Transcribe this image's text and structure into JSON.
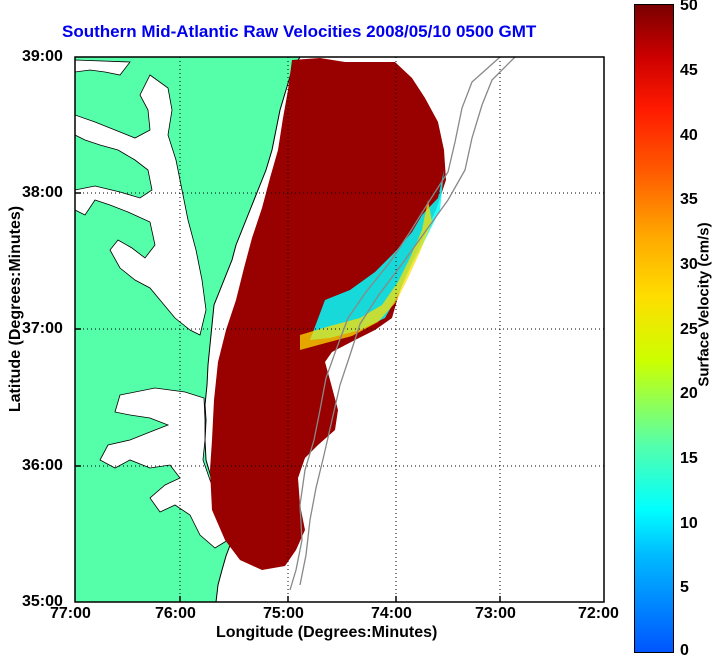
{
  "title": "Southern Mid-Atlantic Raw Velocities 2008/05/10 0500 GMT",
  "x_axis": {
    "label": "Longitude (Degrees:Minutes)",
    "ticks": [
      "77:00",
      "76:00",
      "75:00",
      "74:00",
      "73:00",
      "72:00"
    ]
  },
  "y_axis": {
    "label": "Latitude (Degrees:Minutes)",
    "ticks": [
      "39:00",
      "38:00",
      "37:00",
      "36:00",
      "35:00"
    ]
  },
  "colorbar": {
    "label": "Surface Velocity (cm/s)",
    "ticks": [
      "50",
      "45",
      "40",
      "35",
      "30",
      "25",
      "20",
      "15",
      "10",
      "5",
      "0"
    ],
    "min": 0,
    "max": 50
  },
  "map": {
    "lon_range": [
      -77,
      -72
    ],
    "lat_range": [
      35,
      39
    ],
    "land_color": "#55ffaa",
    "grid": true,
    "gridlines": "dotted"
  }
}
